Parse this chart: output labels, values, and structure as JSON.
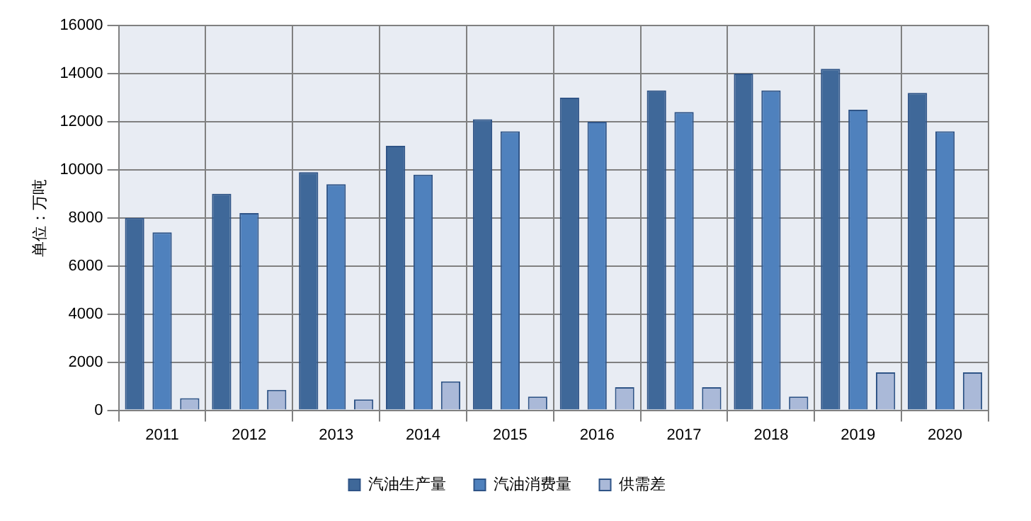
{
  "chart_data": {
    "type": "bar",
    "ylabel": "单位：万吨",
    "categories": [
      "2011",
      "2012",
      "2013",
      "2014",
      "2015",
      "2016",
      "2017",
      "2018",
      "2019",
      "2020"
    ],
    "series": [
      {
        "name": "汽油生产量",
        "color": "#3f6899",
        "values": [
          8000,
          9000,
          9900,
          11000,
          12100,
          13000,
          13300,
          14000,
          14200,
          13200
        ]
      },
      {
        "name": "汽油消费量",
        "color": "#4f81bd",
        "values": [
          7400,
          8200,
          9400,
          9800,
          11600,
          12000,
          12400,
          13300,
          12500,
          11600
        ]
      },
      {
        "name": "供需差",
        "color": "#aab9d8",
        "values": [
          500,
          850,
          450,
          1200,
          570,
          960,
          960,
          570,
          1580,
          1580
        ]
      }
    ],
    "ylim": [
      0,
      16000
    ],
    "yticks": [
      0,
      2000,
      4000,
      6000,
      8000,
      10000,
      12000,
      14000,
      16000
    ],
    "grid": true,
    "legend": "bottom"
  }
}
